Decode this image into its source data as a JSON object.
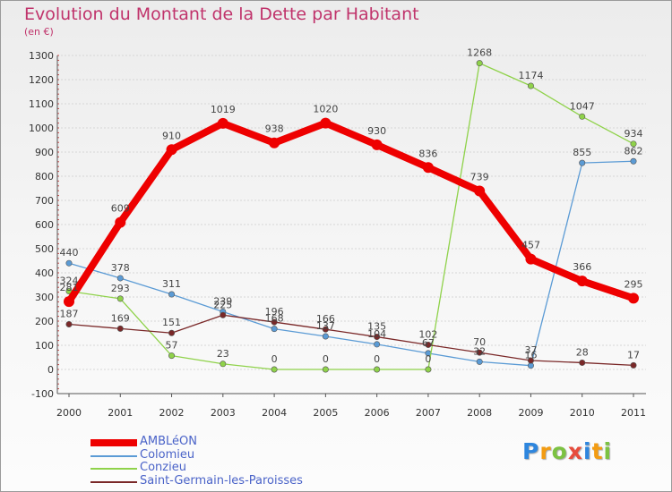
{
  "chart_data": {
    "type": "line",
    "title": "Evolution du Montant de la Dette par Habitant",
    "subtitle": "(en €)",
    "xlabel": "",
    "ylabel": "",
    "ylim": [
      -100,
      1300
    ],
    "yticks": [
      "-100",
      "0",
      "100",
      "200",
      "300",
      "400",
      "500",
      "600",
      "700",
      "800",
      "900",
      "1000",
      "1100",
      "1200",
      "1300"
    ],
    "yticks_values": [
      -100,
      0,
      100,
      200,
      300,
      400,
      500,
      600,
      700,
      800,
      900,
      1000,
      1100,
      1200,
      1300
    ],
    "categories": [
      "2000",
      "2001",
      "2002",
      "2003",
      "2004",
      "2005",
      "2006",
      "2007",
      "2008",
      "2009",
      "2010",
      "2011"
    ],
    "grid": "horizontal",
    "legend_position": "bottom-left",
    "series": [
      {
        "name": "AMBLéON",
        "color": "#ee0000",
        "values": [
          281,
          609,
          910,
          1019,
          938,
          1020,
          930,
          836,
          739,
          457,
          366,
          295
        ],
        "labels": [
          "281",
          "609",
          "910",
          "1019",
          "938",
          "1020",
          "930",
          "836",
          "739",
          "457",
          "366",
          "295"
        ]
      },
      {
        "name": "Colomieu",
        "color": "#5b9bd5",
        "values": [
          440,
          378,
          311,
          239,
          168,
          137,
          104,
          67,
          32,
          16,
          855,
          862
        ],
        "labels": [
          "440",
          "378",
          "311",
          "239",
          "168",
          "137",
          "104",
          "67",
          "32",
          "16",
          "855",
          "862"
        ]
      },
      {
        "name": "Conzieu",
        "color": "#8fd24a",
        "values": [
          324,
          293,
          57,
          23,
          0,
          0,
          0,
          0,
          1268,
          1174,
          1047,
          934
        ],
        "labels": [
          "324",
          "293",
          "57",
          "23",
          "0",
          "0",
          "0",
          "0",
          "1268",
          "1174",
          "1047",
          "934"
        ]
      },
      {
        "name": "Saint-Germain-les-Paroisses",
        "color": "#7a2828",
        "values": [
          187,
          169,
          151,
          225,
          196,
          166,
          135,
          102,
          70,
          37,
          28,
          17
        ],
        "labels": [
          "187",
          "169",
          "151",
          "225",
          "196",
          "166",
          "135",
          "102",
          "70",
          "37",
          "28",
          "17"
        ]
      }
    ]
  },
  "legend": {
    "items": [
      {
        "label": "AMBLéON",
        "color": "#ee0000",
        "label_color": "#4a63c8"
      },
      {
        "label": "Colomieu",
        "color": "#5b9bd5",
        "label_color": "#4a63c8"
      },
      {
        "label": "Conzieu",
        "color": "#8fd24a",
        "label_color": "#4a63c8"
      },
      {
        "label": "Saint-Germain-les-Paroisses",
        "color": "#7a2828",
        "label_color": "#4a63c8"
      }
    ]
  },
  "brand": {
    "letters": [
      "P",
      "r",
      "o",
      "x",
      "i",
      "t",
      "i"
    ],
    "colors": [
      "#2e86de",
      "#f39c12",
      "#7cc242",
      "#e74c3c",
      "#2e86de",
      "#f39c12",
      "#7cc242"
    ]
  }
}
